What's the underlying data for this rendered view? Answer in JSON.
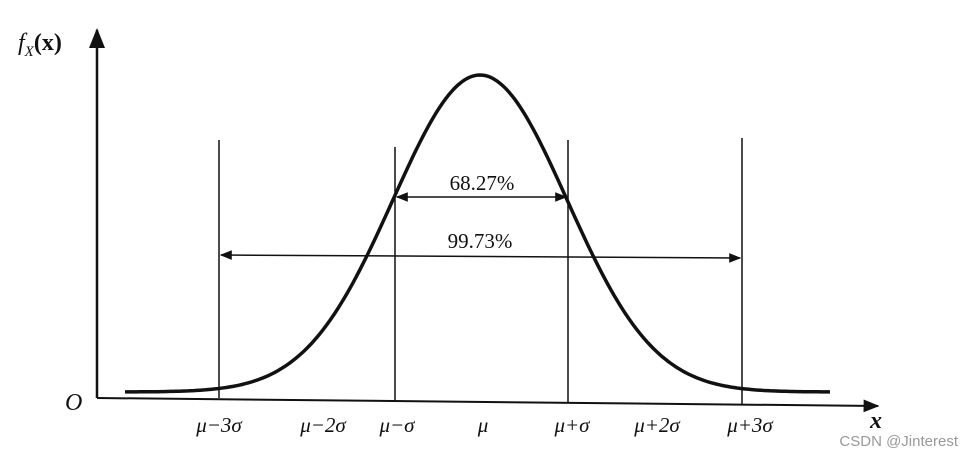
{
  "axes": {
    "y_label": {
      "main": "f",
      "sub": "X",
      "tail": "(x)"
    },
    "origin": "O",
    "x_label": "x"
  },
  "ticks": [
    "μ−3σ",
    "μ−2σ",
    "μ−σ",
    "μ",
    "μ+σ",
    "μ+2σ",
    "μ+3σ"
  ],
  "intervals": [
    "68.27%",
    "99.73%"
  ],
  "watermark": "CSDN @Jinterest"
}
